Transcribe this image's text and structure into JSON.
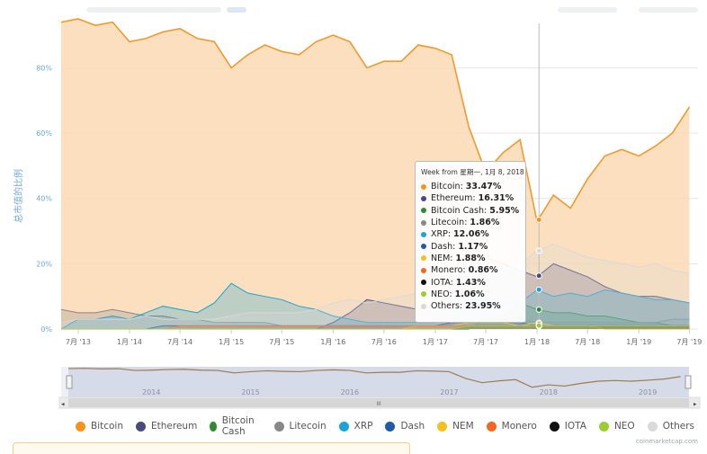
{
  "colors": {
    "bitcoin_fill": "#fbd9b3",
    "bitcoin_line": "#f09a2c",
    "grid": "#e6e6e6",
    "axis_text": "#6ea8d8",
    "navigator_bg": "#d5dbe8"
  },
  "chart_data": {
    "type": "area",
    "ylabel": "总市值的比例",
    "ylim": [
      0,
      100
    ],
    "yticks": [
      "0%",
      "20%",
      "40%",
      "60%",
      "80%"
    ],
    "xticks": [
      "7月 '13",
      "1月 '14",
      "7月 '14",
      "1月 '15",
      "7月 '15",
      "1月 '16",
      "7月 '16",
      "1月 '17",
      "7月 '17",
      "1月 '18",
      "7月 '18",
      "1月 '19",
      "7月 '19"
    ],
    "x": [
      "2013-05",
      "2013-07",
      "2013-09",
      "2013-11",
      "2014-01",
      "2014-03",
      "2014-05",
      "2014-07",
      "2014-09",
      "2014-11",
      "2015-01",
      "2015-03",
      "2015-05",
      "2015-07",
      "2015-09",
      "2015-11",
      "2016-01",
      "2016-03",
      "2016-05",
      "2016-07",
      "2016-09",
      "2016-11",
      "2017-01",
      "2017-03",
      "2017-05",
      "2017-07",
      "2017-09",
      "2017-11",
      "2018-01",
      "2018-03",
      "2018-05",
      "2018-07",
      "2018-09",
      "2018-11",
      "2019-01",
      "2019-03",
      "2019-05",
      "2019-07"
    ],
    "series": [
      {
        "name": "Bitcoin",
        "color": "#f7931a",
        "values": [
          94,
          95,
          93,
          94,
          88,
          89,
          91,
          92,
          89,
          88,
          80,
          84,
          87,
          85,
          84,
          88,
          90,
          88,
          80,
          82,
          82,
          87,
          86,
          84,
          62,
          48,
          54,
          58,
          33,
          41,
          37,
          46,
          53,
          55,
          53,
          56,
          60,
          68
        ]
      },
      {
        "name": "Ethereum",
        "color": "#4b4a7f",
        "values": [
          0,
          0,
          0,
          0,
          0,
          0,
          0,
          0,
          0,
          0,
          0,
          0,
          0,
          0,
          0,
          0,
          2,
          5,
          9,
          8,
          7,
          6,
          8,
          10,
          26,
          22,
          20,
          18,
          16,
          20,
          18,
          16,
          13,
          11,
          10,
          10,
          9,
          8
        ]
      },
      {
        "name": "Bitcoin Cash",
        "color": "#2f8b2f",
        "values": [
          0,
          0,
          0,
          0,
          0,
          0,
          0,
          0,
          0,
          0,
          0,
          0,
          0,
          0,
          0,
          0,
          0,
          0,
          0,
          0,
          0,
          0,
          0,
          0,
          0,
          3,
          4,
          8,
          6,
          5,
          5,
          4,
          4,
          3,
          2,
          2,
          1,
          1
        ]
      },
      {
        "name": "Litecoin",
        "color": "#888888",
        "values": [
          6,
          5,
          5,
          6,
          5,
          4,
          4,
          3,
          3,
          2,
          2,
          2,
          2,
          1,
          1,
          1,
          1,
          1,
          1,
          1,
          1,
          1,
          1,
          2,
          3,
          3,
          3,
          3,
          2,
          2,
          2,
          2,
          2,
          2,
          2,
          2,
          3,
          3
        ]
      },
      {
        "name": "XRP",
        "color": "#1aa3d4",
        "values": [
          0,
          3,
          3,
          4,
          3,
          5,
          7,
          6,
          5,
          8,
          14,
          11,
          10,
          9,
          7,
          6,
          4,
          3,
          2,
          2,
          2,
          2,
          2,
          3,
          8,
          9,
          8,
          8,
          12,
          10,
          11,
          10,
          12,
          11,
          10,
          9,
          9,
          8
        ]
      },
      {
        "name": "Dash",
        "color": "#1f5ca3",
        "values": [
          0,
          0,
          0,
          0,
          0,
          0,
          1,
          1,
          1,
          1,
          1,
          1,
          1,
          1,
          1,
          1,
          1,
          1,
          1,
          1,
          1,
          1,
          1,
          2,
          2,
          2,
          2,
          2,
          1,
          1,
          1,
          1,
          1,
          1,
          1,
          1,
          1,
          1
        ]
      },
      {
        "name": "NEM",
        "color": "#f4c020",
        "values": [
          0,
          0,
          0,
          0,
          0,
          0,
          0,
          0,
          0,
          0,
          0,
          0,
          0,
          0,
          0,
          0,
          0,
          0,
          0,
          0,
          0,
          1,
          1,
          1,
          2,
          2,
          2,
          1,
          2,
          1,
          1,
          1,
          0,
          0,
          0,
          0,
          0,
          0
        ]
      },
      {
        "name": "Monero",
        "color": "#f26822",
        "values": [
          0,
          0,
          0,
          0,
          0,
          0,
          0,
          1,
          1,
          1,
          1,
          1,
          1,
          1,
          1,
          1,
          1,
          1,
          1,
          1,
          1,
          1,
          1,
          1,
          1,
          1,
          1,
          1,
          1,
          1,
          1,
          1,
          1,
          1,
          1,
          1,
          1,
          1
        ]
      },
      {
        "name": "IOTA",
        "color": "#111111",
        "values": [
          0,
          0,
          0,
          0,
          0,
          0,
          0,
          0,
          0,
          0,
          0,
          0,
          0,
          0,
          0,
          0,
          0,
          0,
          0,
          0,
          0,
          0,
          0,
          0,
          1,
          1,
          1,
          1,
          1,
          1,
          1,
          1,
          1,
          1,
          1,
          1,
          1,
          1
        ]
      },
      {
        "name": "NEO",
        "color": "#9acd32",
        "values": [
          0,
          0,
          0,
          0,
          0,
          0,
          0,
          0,
          0,
          0,
          0,
          0,
          0,
          0,
          0,
          0,
          0,
          0,
          0,
          0,
          0,
          0,
          0,
          0,
          1,
          1,
          1,
          1,
          1,
          1,
          1,
          1,
          1,
          1,
          1,
          1,
          1,
          1
        ]
      },
      {
        "name": "Others",
        "color": "#d9d9d9",
        "values": [
          2,
          3,
          3,
          3,
          3,
          4,
          3,
          3,
          3,
          3,
          4,
          5,
          5,
          5,
          5,
          6,
          8,
          9,
          8,
          9,
          10,
          11,
          10,
          13,
          22,
          20,
          18,
          20,
          24,
          26,
          24,
          22,
          21,
          20,
          19,
          20,
          18,
          17
        ]
      }
    ],
    "navigator": {
      "year_labels": [
        "2014",
        "2015",
        "2016",
        "2017",
        "2018",
        "2019"
      ],
      "scroll_label": "III"
    }
  },
  "tooltip": {
    "header": "Week from 星期一, 1月 8, 2018",
    "rows": [
      {
        "name": "Bitcoin",
        "value": "33.47%",
        "color": "#f7931a"
      },
      {
        "name": "Ethereum",
        "value": "16.31%",
        "color": "#4b4a7f"
      },
      {
        "name": "Bitcoin Cash",
        "value": "5.95%",
        "color": "#2f8b2f"
      },
      {
        "name": "Litecoin",
        "value": "1.86%",
        "color": "#888888"
      },
      {
        "name": "XRP",
        "value": "12.06%",
        "color": "#1aa3d4"
      },
      {
        "name": "Dash",
        "value": "1.17%",
        "color": "#1f5ca3"
      },
      {
        "name": "NEM",
        "value": "1.88%",
        "color": "#f4c020"
      },
      {
        "name": "Monero",
        "value": "0.86%",
        "color": "#f26822"
      },
      {
        "name": "IOTA",
        "value": "1.43%",
        "color": "#111111"
      },
      {
        "name": "NEO",
        "value": "1.06%",
        "color": "#9acd32"
      },
      {
        "name": "Others",
        "value": "23.95%",
        "color": "#d9d9d9"
      }
    ]
  },
  "legend": [
    {
      "name": "Bitcoin",
      "color": "#f7931a"
    },
    {
      "name": "Ethereum",
      "color": "#4b4a7f"
    },
    {
      "name": "Bitcoin Cash",
      "color": "#2f8b2f"
    },
    {
      "name": "Litecoin",
      "color": "#888888"
    },
    {
      "name": "XRP",
      "color": "#1aa3d4"
    },
    {
      "name": "Dash",
      "color": "#1f5ca3"
    },
    {
      "name": "NEM",
      "color": "#f4c020"
    },
    {
      "name": "Monero",
      "color": "#f26822"
    },
    {
      "name": "IOTA",
      "color": "#111111"
    },
    {
      "name": "NEO",
      "color": "#9acd32"
    },
    {
      "name": "Others",
      "color": "#d9d9d9"
    }
  ],
  "credit": "coinmarketcap.com"
}
